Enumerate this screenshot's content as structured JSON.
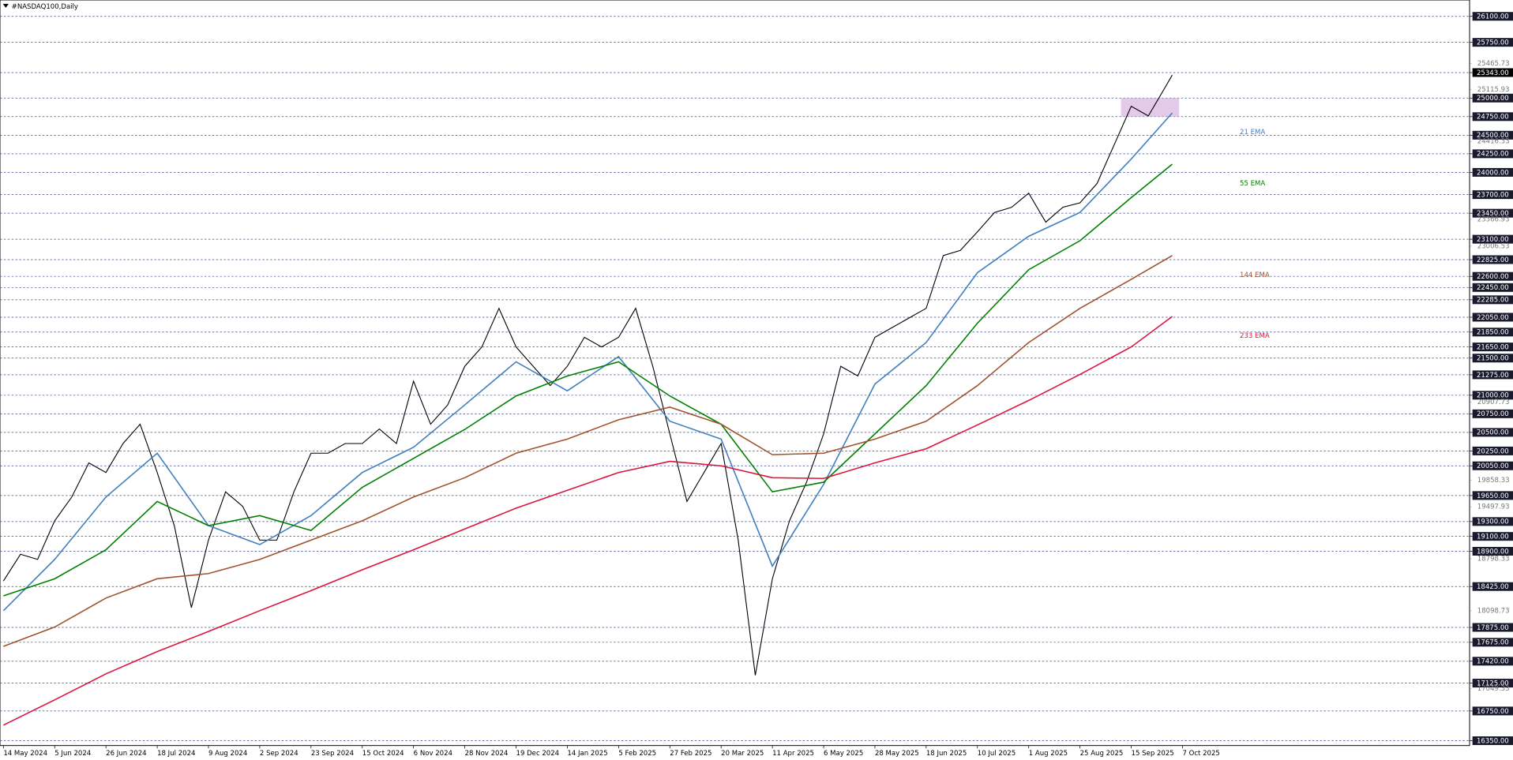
{
  "chart_data": {
    "type": "line",
    "title": "#NASDAQ100,Daily",
    "xlim": [
      -1,
      429
    ],
    "ylim": [
      16285,
      26320
    ],
    "xticks": [
      {
        "value": 0,
        "label": "14 May 2024"
      },
      {
        "value": 15,
        "label": "5 Jun 2024"
      },
      {
        "value": 30,
        "label": "26 Jun 2024"
      },
      {
        "value": 45,
        "label": "18 Jul 2024"
      },
      {
        "value": 60,
        "label": "9 Aug 2024"
      },
      {
        "value": 75,
        "label": "2 Sep 2024"
      },
      {
        "value": 90,
        "label": "23 Sep 2024"
      },
      {
        "value": 105,
        "label": "15 Oct 2024"
      },
      {
        "value": 120,
        "label": "6 Nov 2024"
      },
      {
        "value": 135,
        "label": "28 Nov 2024"
      },
      {
        "value": 150,
        "label": "19 Dec 2024"
      },
      {
        "value": 165,
        "label": "14 Jan 2025"
      },
      {
        "value": 180,
        "label": "5 Feb 2025"
      },
      {
        "value": 195,
        "label": "27 Feb 2025"
      },
      {
        "value": 210,
        "label": "20 Mar 2025"
      },
      {
        "value": 225,
        "label": "11 Apr 2025"
      },
      {
        "value": 240,
        "label": "6 May 2025"
      },
      {
        "value": 255,
        "label": "28 May 2025"
      },
      {
        "value": 270,
        "label": "18 Jun 2025"
      },
      {
        "value": 285,
        "label": "10 Jul 2025"
      },
      {
        "value": 300,
        "label": "1 Aug 2025"
      },
      {
        "value": 315,
        "label": "25 Aug 2025"
      },
      {
        "value": 330,
        "label": "15 Sep 2025"
      },
      {
        "value": 345,
        "label": "7 Oct 2025"
      }
    ],
    "yticks": [
      {
        "value": 26100,
        "label": "26100.00"
      },
      {
        "value": 25750,
        "label": "25750.00"
      },
      {
        "value": 25343,
        "label": "25343.00"
      },
      {
        "value": 25000,
        "label": "25000.00"
      },
      {
        "value": 24750,
        "label": "24750.00"
      },
      {
        "value": 24500,
        "label": "24500.00"
      },
      {
        "value": 24250,
        "label": "24250.00"
      },
      {
        "value": 24000,
        "label": "24000.00"
      },
      {
        "value": 23700,
        "label": "23700.00"
      },
      {
        "value": 23450,
        "label": "23450.00"
      },
      {
        "value": 23100,
        "label": "23100.00"
      },
      {
        "value": 22825,
        "label": "22825.00"
      },
      {
        "value": 22600,
        "label": "22600.00"
      },
      {
        "value": 22450,
        "label": "22450.00"
      },
      {
        "value": 22285,
        "label": "22285.00"
      },
      {
        "value": 22050,
        "label": "22050.00"
      },
      {
        "value": 21850,
        "label": "21850.00"
      },
      {
        "value": 21650,
        "label": "21650.00"
      },
      {
        "value": 21500,
        "label": "21500.00"
      },
      {
        "value": 21275,
        "label": "21275.00"
      },
      {
        "value": 21000,
        "label": "21000.00"
      },
      {
        "value": 20750,
        "label": "20750.00"
      },
      {
        "value": 20500,
        "label": "20500.00"
      },
      {
        "value": 20250,
        "label": "20250.00"
      },
      {
        "value": 20050,
        "label": "20050.00"
      },
      {
        "value": 19650,
        "label": "19650.00"
      },
      {
        "value": 19300,
        "label": "19300.00"
      },
      {
        "value": 19100,
        "label": "19100.00"
      },
      {
        "value": 18900,
        "label": "18900.00"
      },
      {
        "value": 18425,
        "label": "18425.00"
      },
      {
        "value": 17875,
        "label": "17875.00"
      },
      {
        "value": 17675,
        "label": "17675.00"
      },
      {
        "value": 17420,
        "label": "17420.00"
      },
      {
        "value": 17125,
        "label": "17125.00"
      },
      {
        "value": 16750,
        "label": "16750.00"
      },
      {
        "value": 16350,
        "label": "16350.00"
      }
    ],
    "current_price": 25343,
    "scale_ticks": [
      25465.73,
      25115.93,
      24416.33,
      23366.93,
      23006.53,
      20907.73,
      19858.33,
      19497.93,
      18798.33,
      18098.73,
      17049.33
    ],
    "zone": {
      "x": [
        327,
        344
      ],
      "y": [
        24750,
        25000
      ],
      "color": "#d9b8e0"
    },
    "series": [
      {
        "color": "#000000",
        "x": [
          0,
          5,
          10,
          15,
          20,
          25,
          30,
          35,
          40,
          45,
          50,
          55,
          60,
          65,
          70,
          75,
          80,
          85,
          90,
          95,
          100,
          105,
          110,
          115,
          120,
          125,
          130,
          135,
          140,
          145,
          150,
          155,
          160,
          165,
          170,
          175,
          180,
          185,
          190,
          195,
          200,
          205,
          210,
          215,
          220,
          225,
          230,
          235,
          240,
          245,
          250,
          255,
          260,
          265,
          270,
          275,
          280,
          285,
          290,
          295,
          300,
          305,
          310,
          315,
          320,
          325,
          330,
          335,
          340,
          342
        ],
        "values": [
          18500,
          18860,
          18790,
          19310,
          19630,
          20090,
          19960,
          20350,
          20610,
          19960,
          19245,
          18140,
          19050,
          19700,
          19505,
          19050,
          19050,
          19700,
          20220,
          20220,
          20350,
          20350,
          20545,
          20350,
          21190,
          20610,
          20870,
          21390,
          21650,
          22170,
          21650,
          21390,
          21130,
          21390,
          21780,
          21650,
          21780,
          22170,
          21390,
          20480,
          19570,
          19960,
          20350,
          19050,
          17230,
          18530,
          19310,
          19830,
          20480,
          21390,
          21260,
          21780,
          21910,
          22040,
          22170,
          22880,
          22950,
          23200,
          23460,
          23530,
          23720,
          23330,
          23530,
          23590,
          23850,
          24370,
          24890,
          24760,
          25150,
          25310
        ]
      },
      {
        "name": "21 EMA",
        "color": "#3f7fbf",
        "x": [
          0,
          15,
          30,
          45,
          60,
          75,
          90,
          105,
          120,
          135,
          150,
          165,
          180,
          195,
          210,
          225,
          240,
          255,
          270,
          285,
          300,
          315,
          330,
          342
        ],
        "values": [
          18100,
          18790,
          19630,
          20220,
          19245,
          18990,
          19380,
          19960,
          20300,
          20870,
          21450,
          21060,
          21520,
          20650,
          20410,
          18700,
          19800,
          21150,
          21710,
          22650,
          23140,
          23460,
          24180,
          24800
        ]
      },
      {
        "name": "55 EMA",
        "color": "#008000",
        "x": [
          0,
          15,
          30,
          45,
          60,
          75,
          90,
          105,
          120,
          135,
          150,
          165,
          180,
          195,
          210,
          225,
          240,
          255,
          270,
          285,
          300,
          315,
          330,
          342
        ],
        "values": [
          18300,
          18530,
          18920,
          19570,
          19245,
          19380,
          19180,
          19760,
          20150,
          20540,
          20990,
          21260,
          21450,
          20990,
          20610,
          19700,
          19830,
          20480,
          21130,
          21970,
          22690,
          23080,
          23660,
          24110
        ]
      },
      {
        "name": "144 EMA",
        "color": "#a0522d",
        "x": [
          0,
          15,
          30,
          45,
          60,
          75,
          90,
          105,
          120,
          135,
          150,
          165,
          180,
          195,
          210,
          225,
          240,
          255,
          270,
          285,
          300,
          315,
          330,
          342
        ],
        "values": [
          17620,
          17880,
          18270,
          18530,
          18600,
          18790,
          19050,
          19310,
          19630,
          19890,
          20220,
          20410,
          20670,
          20840,
          20610,
          20200,
          20220,
          20410,
          20650,
          21130,
          21710,
          22170,
          22560,
          22880
        ]
      },
      {
        "name": "233 EMA",
        "color": "#dc143c",
        "x": [
          0,
          15,
          30,
          45,
          60,
          75,
          90,
          105,
          120,
          135,
          150,
          165,
          180,
          195,
          210,
          225,
          240,
          255,
          270,
          285,
          300,
          315,
          330,
          342
        ],
        "values": [
          16560,
          16900,
          17250,
          17550,
          17820,
          18100,
          18370,
          18650,
          18920,
          19200,
          19480,
          19720,
          19960,
          20110,
          20050,
          19890,
          19880,
          20090,
          20280,
          20600,
          20930,
          21280,
          21650,
          22060
        ]
      }
    ]
  }
}
